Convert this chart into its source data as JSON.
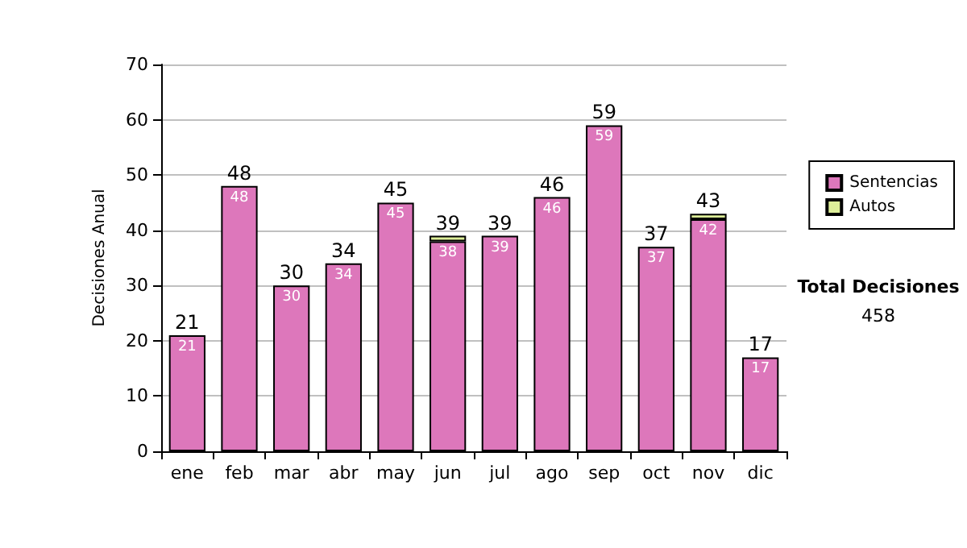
{
  "chart_data": {
    "type": "bar",
    "ylabel": "Decisiones Anual",
    "categories": [
      "ene",
      "feb",
      "mar",
      "abr",
      "may",
      "jun",
      "jul",
      "ago",
      "sep",
      "oct",
      "nov",
      "dic"
    ],
    "series": [
      {
        "name": "Sentencias",
        "color": "#dd77bb",
        "values": [
          21,
          48,
          30,
          34,
          45,
          38,
          39,
          46,
          59,
          37,
          42,
          17
        ],
        "value_labels": [
          "21",
          "48",
          "30",
          "34",
          "45",
          "38",
          "39",
          "46",
          "59",
          "37",
          "42",
          "17"
        ]
      },
      {
        "name": "Autos",
        "color": "#ddee99",
        "values": [
          null,
          null,
          null,
          null,
          null,
          1,
          null,
          null,
          null,
          null,
          1,
          null
        ]
      }
    ],
    "stacked": true,
    "totals": [
      "21",
      "48",
      "30",
      "34",
      "45",
      "39",
      "39",
      "46",
      "59",
      "37",
      "43",
      "17"
    ],
    "ylim": [
      0,
      70
    ],
    "yticks": [
      0,
      10,
      20,
      30,
      40,
      50,
      60,
      70
    ],
    "grid": "y",
    "legend": "right",
    "annotations": [
      "Total Decisiones",
      "458"
    ]
  }
}
